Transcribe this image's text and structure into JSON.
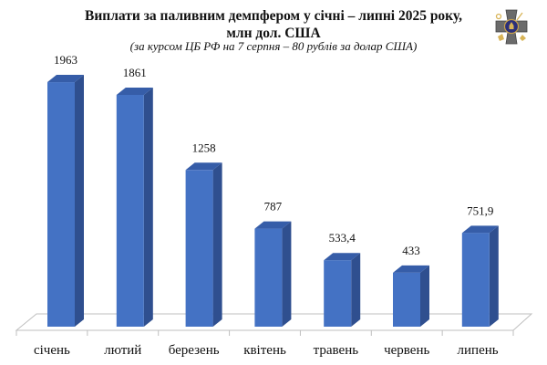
{
  "header": {
    "title_line1": "Виплати за паливним демпфером у січні – липні 2025 року,",
    "title_line2": "млн дол. США",
    "subtitle": "(за курсом ЦБ РФ на 7 серпня – 80 рублів за долар США)",
    "emblem_icon": "military-cross-emblem-icon"
  },
  "colors": {
    "bar_front": "#4472C4",
    "bar_side": "#2F4F8F",
    "bar_top": "#365DA8",
    "floor_line": "#bfbfbf"
  },
  "chart_data": {
    "type": "bar",
    "title": "Виплати за паливним демпфером у січні – липні 2025 року, млн дол. США",
    "subtitle": "(за курсом ЦБ РФ на 7 серпня – 80 рублів за долар США)",
    "categories": [
      "січень",
      "лютий",
      "березень",
      "квітень",
      "травень",
      "червень",
      "липень"
    ],
    "values": [
      1963,
      1861,
      1258,
      787,
      533.4,
      433,
      751.9
    ],
    "value_labels": [
      "1963",
      "1861",
      "1258",
      "787",
      "533,4",
      "433",
      "751,9"
    ],
    "xlabel": "",
    "ylabel": "млн дол. США",
    "ylim": [
      0,
      2000
    ],
    "grid": false,
    "legend": "none",
    "style": "3d-column"
  }
}
